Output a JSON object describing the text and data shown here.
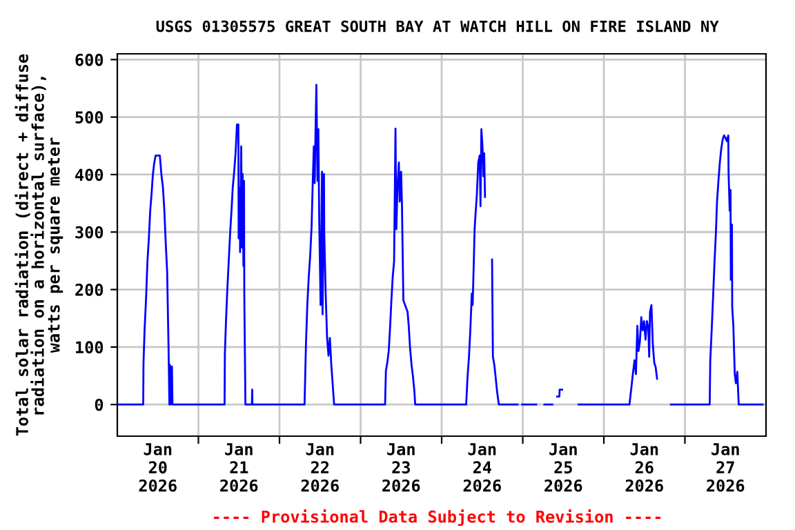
{
  "chart_data": {
    "type": "line",
    "title": "USGS 01305575 GREAT SOUTH BAY AT WATCH HILL ON FIRE ISLAND NY",
    "ylabel": "Total solar radiation (direct + diffuse\nradiation on a horizontal surface),\nwatts per square meter",
    "annotations": [
      "---- Provisional Data Subject to Revision ----"
    ],
    "x": [
      "2026-01-20T00:00",
      "2026-01-20T07:40",
      "2026-01-20T07:45",
      "2026-01-20T08:05",
      "2026-01-20T08:30",
      "2026-01-20T08:55",
      "2026-01-20T09:20",
      "2026-01-20T09:45",
      "2026-01-20T10:10",
      "2026-01-20T10:30",
      "2026-01-20T10:55",
      "2026-01-20T11:20",
      "2026-01-20T12:35",
      "2026-01-20T13:05",
      "2026-01-20T13:30",
      "2026-01-20T13:55",
      "2026-01-20T14:20",
      "2026-01-20T14:45",
      "2026-01-20T15:10",
      "2026-01-20T15:25",
      "2026-01-20T15:35",
      "2026-01-20T15:45",
      "2026-01-20T16:10",
      "2026-01-20T16:20",
      "2026-01-21T07:45",
      "2026-01-21T07:50",
      "2026-01-21T08:10",
      "2026-01-21T08:35",
      "2026-01-21T09:00",
      "2026-01-21T09:25",
      "2026-01-21T09:50",
      "2026-01-21T10:10",
      "2026-01-21T10:35",
      "2026-01-21T11:00",
      "2026-01-21T11:25",
      "2026-01-21T11:50",
      "2026-01-21T11:55",
      "2026-01-21T12:15",
      "2026-01-21T12:20",
      "2026-01-21T12:40",
      "2026-01-21T12:55",
      "2026-01-21T13:05",
      "2026-01-21T13:20",
      "2026-01-21T13:30",
      "2026-01-21T13:35",
      "2026-01-21T13:55",
      "2026-01-21T15:50",
      "2026-01-21T15:55",
      "2026-01-21T16:00",
      "2026-01-22T07:25",
      "2026-01-22T07:50",
      "2026-01-22T08:15",
      "2026-01-22T08:40",
      "2026-01-22T09:05",
      "2026-01-22T09:30",
      "2026-01-22T09:50",
      "2026-01-22T10:10",
      "2026-01-22T10:25",
      "2026-01-22T10:40",
      "2026-01-22T10:55",
      "2026-01-22T11:15",
      "2026-01-22T11:30",
      "2026-01-22T11:45",
      "2026-01-22T12:10",
      "2026-01-22T12:35",
      "2026-01-22T12:45",
      "2026-01-22T13:10",
      "2026-01-22T13:15",
      "2026-01-22T13:40",
      "2026-01-22T14:05",
      "2026-01-22T14:30",
      "2026-01-22T14:55",
      "2026-01-22T15:20",
      "2026-01-22T15:45",
      "2026-01-22T16:10",
      "2026-01-23T07:15",
      "2026-01-23T07:30",
      "2026-01-23T07:55",
      "2026-01-23T08:20",
      "2026-01-23T08:45",
      "2026-01-23T09:05",
      "2026-01-23T09:30",
      "2026-01-23T09:55",
      "2026-01-23T10:20",
      "2026-01-23T10:35",
      "2026-01-23T10:55",
      "2026-01-23T11:20",
      "2026-01-23T11:35",
      "2026-01-23T12:00",
      "2026-01-23T12:15",
      "2026-01-23T12:40",
      "2026-01-23T13:10",
      "2026-01-23T13:55",
      "2026-01-23T14:15",
      "2026-01-23T14:40",
      "2026-01-23T15:05",
      "2026-01-23T15:30",
      "2026-01-23T15:55",
      "2026-01-23T16:10",
      "2026-01-24T07:15",
      "2026-01-24T07:40",
      "2026-01-24T08:05",
      "2026-01-24T08:30",
      "2026-01-24T08:55",
      "2026-01-24T09:10",
      "2026-01-24T09:30",
      "2026-01-24T09:45",
      "2026-01-24T10:00",
      "2026-01-24T10:25",
      "2026-01-24T10:50",
      "2026-01-24T11:15",
      "2026-01-24T11:30",
      "2026-01-24T11:45",
      "2026-01-24T12:05",
      "2026-01-24T12:20",
      "2026-01-24T12:35",
      "2026-01-24T12:50",
      "2026-01-24T13:50",
      "2026-01-24T14:55",
      "2026-01-24T15:10",
      "2026-01-24T15:35",
      "2026-01-24T16:00",
      "2026-01-24T16:25",
      "2026-01-24T16:55",
      "2026-01-24T22:30",
      "2026-01-24T23:10",
      "2026-01-24T23:50",
      "2026-01-25T04:00",
      "2026-01-25T05:10",
      "2026-01-25T06:25",
      "2026-01-25T08:45",
      "2026-01-25T09:30",
      "2026-01-25T10:10",
      "2026-01-25T10:50",
      "2026-01-25T10:55",
      "2026-01-25T11:40",
      "2026-01-25T14:00",
      "2026-01-25T16:30",
      "2026-01-26T07:35",
      "2026-01-26T08:05",
      "2026-01-26T08:40",
      "2026-01-26T09:05",
      "2026-01-26T09:30",
      "2026-01-26T09:55",
      "2026-01-26T10:15",
      "2026-01-26T10:40",
      "2026-01-26T11:05",
      "2026-01-26T11:30",
      "2026-01-26T11:55",
      "2026-01-26T12:20",
      "2026-01-26T12:45",
      "2026-01-26T13:10",
      "2026-01-26T13:25",
      "2026-01-26T13:40",
      "2026-01-26T14:05",
      "2026-01-26T14:30",
      "2026-01-26T14:55",
      "2026-01-26T15:20",
      "2026-01-26T15:45",
      "2026-01-26T17:50",
      "2026-01-26T19:50",
      "2026-01-27T07:20",
      "2026-01-27T07:30",
      "2026-01-27T07:55",
      "2026-01-27T08:20",
      "2026-01-27T08:45",
      "2026-01-27T09:10",
      "2026-01-27T09:30",
      "2026-01-27T09:55",
      "2026-01-27T10:20",
      "2026-01-27T10:45",
      "2026-01-27T11:10",
      "2026-01-27T11:35",
      "2026-01-27T12:00",
      "2026-01-27T12:25",
      "2026-01-27T12:50",
      "2026-01-27T12:55",
      "2026-01-27T13:15",
      "2026-01-27T13:30",
      "2026-01-27T13:35",
      "2026-01-27T13:55",
      "2026-01-27T14:00",
      "2026-01-27T14:20",
      "2026-01-27T14:45",
      "2026-01-27T15:05",
      "2026-01-27T15:30",
      "2026-01-27T15:55",
      "2026-01-27T23:00"
    ],
    "series": [
      {
        "color": "#0000ff",
        "values": [
          0,
          0,
          72,
          132,
          183,
          249,
          289,
          338,
          369,
          398,
          420,
          433,
          433,
          398,
          378,
          338,
          281,
          231,
          97,
          0,
          69,
          0,
          66,
          0,
          0,
          88,
          145,
          203,
          252,
          301,
          341,
          378,
          405,
          437,
          487,
          487,
          289,
          377,
          265,
          449,
          273,
          401,
          241,
          389,
          191,
          0,
          0,
          26,
          0,
          0,
          105,
          175,
          223,
          259,
          309,
          385,
          449,
          385,
          476,
          556,
          389,
          479,
          325,
          173,
          405,
          157,
          401,
          297,
          193,
          117,
          85,
          116,
          69,
          35,
          0,
          0,
          59,
          73,
          93,
          136,
          177,
          221,
          249,
          480,
          305,
          377,
          421,
          353,
          405,
          347,
          181,
          173,
          161,
          137,
          97,
          69,
          49,
          24,
          0,
          0,
          49,
          83,
          132,
          193,
          173,
          245,
          305,
          329,
          365,
          421,
          433,
          345,
          479,
          449,
          397,
          437,
          361,
          null,
          252,
          83,
          69,
          46,
          22,
          0,
          0,
          null,
          0,
          0,
          null,
          0,
          0,
          null,
          14,
          14,
          26,
          26,
          null,
          0,
          0,
          26,
          57,
          77,
          53,
          137,
          93,
          109,
          152,
          129,
          145,
          113,
          145,
          133,
          83,
          161,
          173,
          105,
          73,
          65,
          45,
          null,
          0,
          0,
          77,
          129,
          187,
          247,
          298,
          353,
          389,
          421,
          445,
          461,
          468,
          464,
          458,
          468,
          402,
          337,
          373,
          217,
          313,
          169,
          137,
          53,
          37,
          57,
          0,
          0
        ]
      }
    ],
    "xlim": [
      "2026-01-20T00:00",
      "2026-01-28T00:00"
    ],
    "xticks": [
      {
        "value": "2026-01-20T12:00",
        "label": "Jan\n20\n2026"
      },
      {
        "value": "2026-01-21T00:00",
        "label": null
      },
      {
        "value": "2026-01-21T12:00",
        "label": "Jan\n21\n2026"
      },
      {
        "value": "2026-01-22T00:00",
        "label": null
      },
      {
        "value": "2026-01-22T12:00",
        "label": "Jan\n22\n2026"
      },
      {
        "value": "2026-01-23T00:00",
        "label": null
      },
      {
        "value": "2026-01-23T12:00",
        "label": "Jan\n23\n2026"
      },
      {
        "value": "2026-01-24T00:00",
        "label": null
      },
      {
        "value": "2026-01-24T12:00",
        "label": "Jan\n24\n2026"
      },
      {
        "value": "2026-01-25T00:00",
        "label": null
      },
      {
        "value": "2026-01-25T12:00",
        "label": "Jan\n25\n2026"
      },
      {
        "value": "2026-01-26T00:00",
        "label": null
      },
      {
        "value": "2026-01-26T12:00",
        "label": "Jan\n26\n2026"
      },
      {
        "value": "2026-01-27T00:00",
        "label": null
      },
      {
        "value": "2026-01-27T12:00",
        "label": "Jan\n27\n2026"
      }
    ],
    "ylim": [
      -55,
      610
    ],
    "yticks": [
      0,
      100,
      200,
      300,
      400,
      500,
      600
    ],
    "grid": true,
    "line_style": "solid"
  }
}
